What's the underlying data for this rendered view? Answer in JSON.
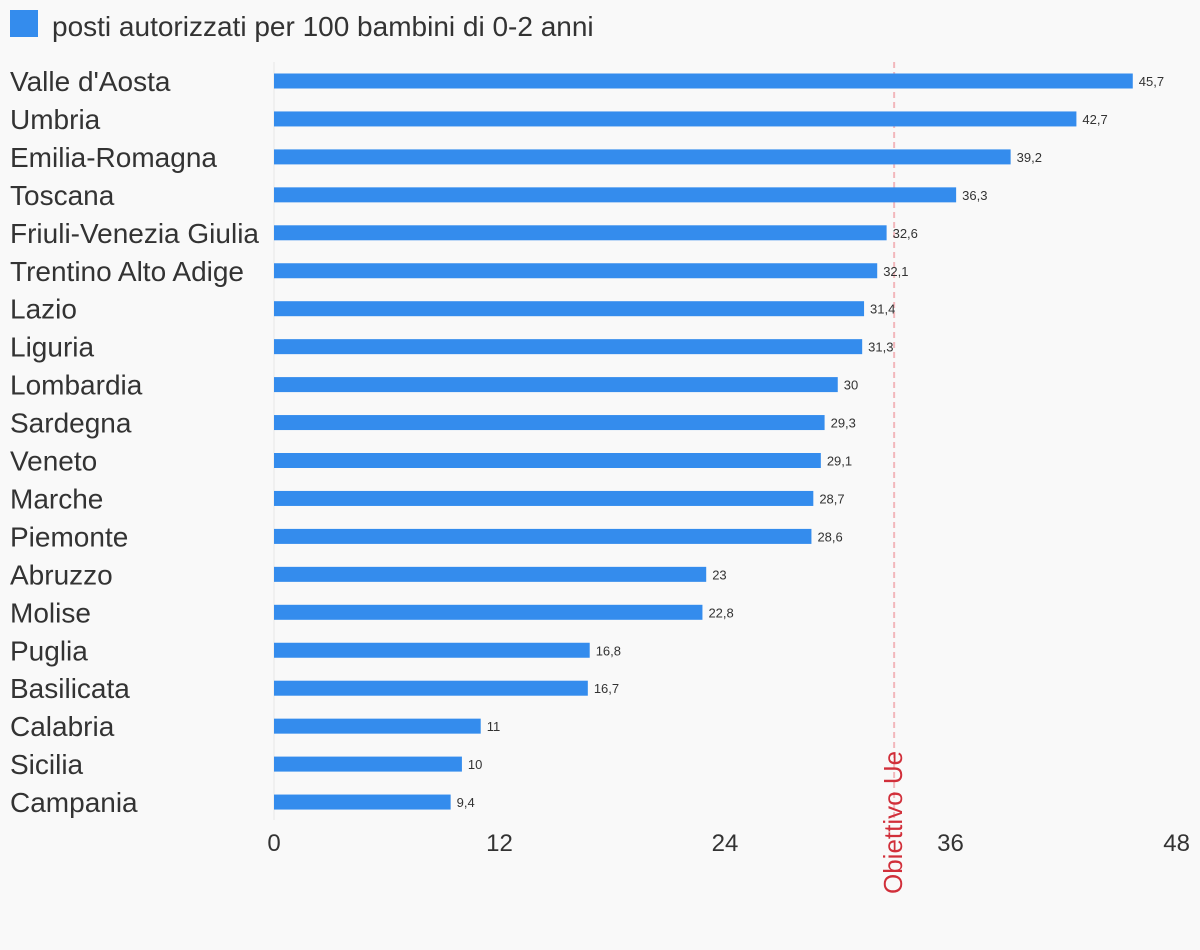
{
  "chart_data": {
    "type": "bar",
    "orientation": "horizontal",
    "categories": [
      "Valle d'Aosta",
      "Umbria",
      "Emilia-Romagna",
      "Toscana",
      "Friuli-Venezia Giulia",
      "Trentino Alto Adige",
      "Lazio",
      "Liguria",
      "Lombardia",
      "Sardegna",
      "Veneto",
      "Marche",
      "Piemonte",
      "Abruzzo",
      "Molise",
      "Puglia",
      "Basilicata",
      "Calabria",
      "Sicilia",
      "Campania"
    ],
    "series": [
      {
        "name": "posti autorizzati per 100 bambini di 0-2 anni",
        "values": [
          45.7,
          42.7,
          39.2,
          36.3,
          32.6,
          32.1,
          31.4,
          31.3,
          30,
          29.3,
          29.1,
          28.7,
          28.6,
          23,
          22.8,
          16.8,
          16.7,
          11,
          10,
          9.4
        ],
        "value_labels": [
          "45,7",
          "42,7",
          "39,2",
          "36,3",
          "32,6",
          "32,1",
          "31,4",
          "31,3",
          "30",
          "29,3",
          "29,1",
          "28,7",
          "28,6",
          "23",
          "22,8",
          "16,8",
          "16,7",
          "11",
          "10",
          "9,4"
        ],
        "color": "#348ced"
      }
    ],
    "xlim": [
      0,
      48
    ],
    "xticks": [
      0,
      12,
      24,
      36,
      48
    ],
    "xtick_labels": [
      "0",
      "12",
      "24",
      "36",
      "48"
    ],
    "reference_line": {
      "value": 33,
      "label": "Obiettivo Ue",
      "color": "#d12f3a",
      "style": "dashed"
    },
    "legend_position": "top-left",
    "grid": false,
    "title": "",
    "xlabel": "",
    "ylabel": ""
  }
}
